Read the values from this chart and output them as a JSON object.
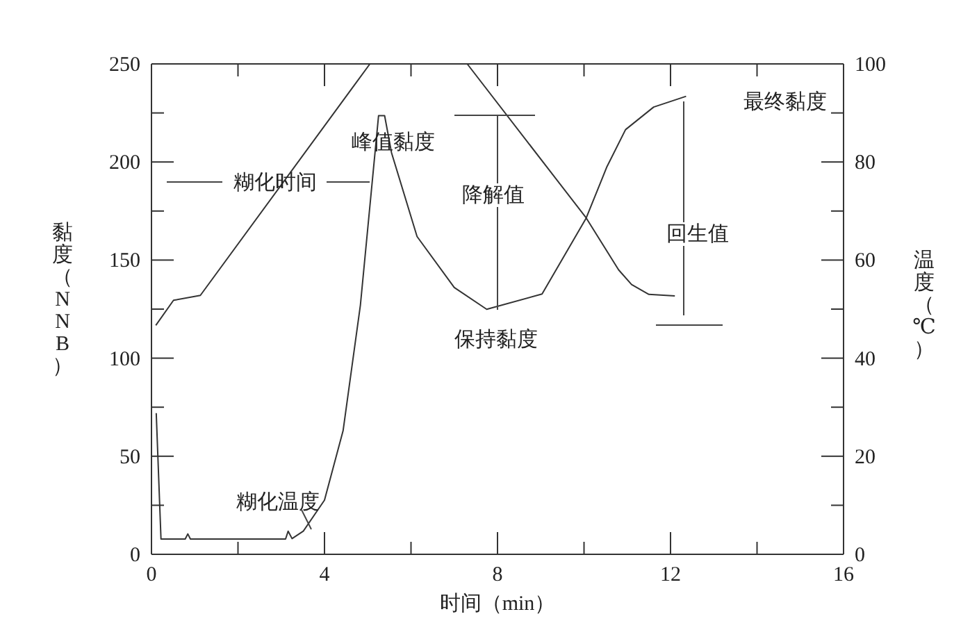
{
  "chart_data": {
    "type": "line",
    "xlabel": "时间（min）",
    "ylabel": "黏度（NNB）",
    "y2label": "温度（℃）",
    "xlim": [
      0,
      16
    ],
    "xticks": [
      0,
      {
        "value": 2,
        "label": null
      },
      4,
      {
        "value": 6,
        "label": null
      },
      8,
      {
        "value": 10,
        "label": null
      },
      12,
      {
        "value": 14,
        "label": null
      },
      16
    ],
    "ylim": [
      0,
      250
    ],
    "yticks": [
      0,
      {
        "value": 25,
        "label": null
      },
      50,
      {
        "value": 75,
        "label": null
      },
      100,
      {
        "value": 125,
        "label": null
      },
      150,
      {
        "value": 175,
        "label": null
      },
      200,
      {
        "value": 225,
        "label": null
      },
      250
    ],
    "y2lim": [
      0,
      100
    ],
    "y2ticks": [
      0,
      {
        "value": 10,
        "label": null
      },
      20,
      {
        "value": 30,
        "label": null
      },
      40,
      {
        "value": 50,
        "label": null
      },
      60,
      {
        "value": 70,
        "label": null
      },
      80,
      {
        "value": 90,
        "label": null
      },
      100
    ],
    "series": [
      {
        "color": "#333333",
        "x": [
          0.11,
          0.22,
          0.78,
          0.84,
          0.9,
          3.1,
          3.16,
          3.25,
          3.51,
          4.0,
          4.43,
          4.83,
          5.25,
          5.39,
          5.55,
          6.14,
          7.0,
          7.75,
          9.03,
          10.05,
          10.53,
          10.96,
          11.61,
          12.36
        ],
        "values": [
          72,
          7.8,
          7.8,
          10.4,
          7.8,
          7.8,
          11.8,
          8,
          11.8,
          27.6,
          63,
          127,
          223.6,
          223.6,
          204.7,
          162,
          136,
          124.9,
          132.7,
          171.4,
          197.6,
          216.5,
          228,
          233.5
        ]
      },
      {
        "color": "#333333",
        "axis": "y2",
        "x": [
          0.1,
          0.51,
          1.13,
          5.05,
          7.3,
          10.05,
          10.8,
          11.1,
          11.5,
          12.1
        ],
        "values": [
          46.7,
          51.8,
          52.8,
          100,
          100,
          68.6,
          58,
          55,
          53,
          52.7
        ]
      }
    ],
    "annotations": [
      "糊化时间",
      "峰值黏度",
      "降解值",
      "最终黏度",
      "回生值",
      "保持黏度",
      "糊化温度"
    ]
  }
}
